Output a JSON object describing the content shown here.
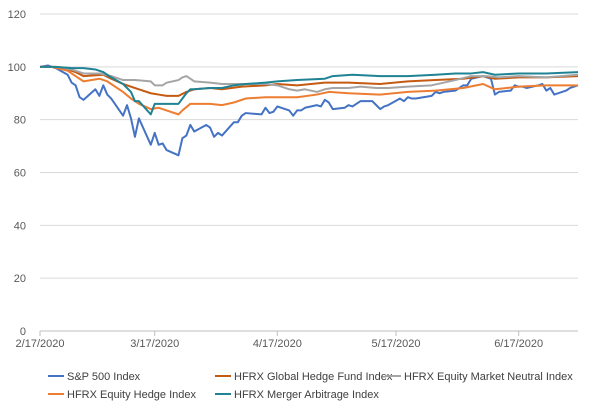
{
  "chart_data": {
    "type": "line",
    "title": "",
    "xlabel": "",
    "ylabel": "",
    "ylim": [
      0,
      120
    ],
    "yticks": [
      0,
      20,
      40,
      60,
      80,
      100,
      120
    ],
    "xlim": [
      "2020-02-17",
      "2020-07-02"
    ],
    "xticks": [
      "2/17/2020",
      "3/17/2020",
      "4/17/2020",
      "5/17/2020",
      "6/17/2020"
    ],
    "grid": {
      "horizontal": true,
      "vertical": false
    },
    "legend": "bottom",
    "series": [
      {
        "name": "S&P 500 Index",
        "color": "#4472c4",
        "points": [
          [
            "2020-02-17",
            100
          ],
          [
            "2020-02-19",
            100.5
          ],
          [
            "2020-02-21",
            99.5
          ],
          [
            "2020-02-24",
            97
          ],
          [
            "2020-02-25",
            94
          ],
          [
            "2020-02-26",
            93
          ],
          [
            "2020-02-27",
            88.5
          ],
          [
            "2020-02-28",
            87.5
          ],
          [
            "2020-03-02",
            91.5
          ],
          [
            "2020-03-03",
            89
          ],
          [
            "2020-03-04",
            93
          ],
          [
            "2020-03-05",
            89.5
          ],
          [
            "2020-03-06",
            88
          ],
          [
            "2020-03-09",
            81.5
          ],
          [
            "2020-03-10",
            85.5
          ],
          [
            "2020-03-11",
            80.5
          ],
          [
            "2020-03-12",
            73.5
          ],
          [
            "2020-03-13",
            80.5
          ],
          [
            "2020-03-16",
            70.5
          ],
          [
            "2020-03-17",
            75
          ],
          [
            "2020-03-18",
            70.5
          ],
          [
            "2020-03-19",
            71
          ],
          [
            "2020-03-20",
            68.5
          ],
          [
            "2020-03-23",
            66.5
          ],
          [
            "2020-03-24",
            73
          ],
          [
            "2020-03-25",
            74
          ],
          [
            "2020-03-26",
            78
          ],
          [
            "2020-03-27",
            75.5
          ],
          [
            "2020-03-30",
            78
          ],
          [
            "2020-03-31",
            77
          ],
          [
            "2020-04-01",
            73.5
          ],
          [
            "2020-04-02",
            75
          ],
          [
            "2020-04-03",
            74
          ],
          [
            "2020-04-06",
            79
          ],
          [
            "2020-04-07",
            79
          ],
          [
            "2020-04-08",
            81.5
          ],
          [
            "2020-04-09",
            82.5
          ],
          [
            "2020-04-13",
            82
          ],
          [
            "2020-04-14",
            84.5
          ],
          [
            "2020-04-15",
            82.5
          ],
          [
            "2020-04-16",
            83
          ],
          [
            "2020-04-17",
            85
          ],
          [
            "2020-04-20",
            83.5
          ],
          [
            "2020-04-21",
            81.5
          ],
          [
            "2020-04-22",
            83.5
          ],
          [
            "2020-04-23",
            83.5
          ],
          [
            "2020-04-24",
            84.5
          ],
          [
            "2020-04-27",
            85.5
          ],
          [
            "2020-04-28",
            85
          ],
          [
            "2020-04-29",
            87.5
          ],
          [
            "2020-04-30",
            86.5
          ],
          [
            "2020-05-01",
            84
          ],
          [
            "2020-05-04",
            84.5
          ],
          [
            "2020-05-05",
            85.5
          ],
          [
            "2020-05-06",
            85
          ],
          [
            "2020-05-07",
            86
          ],
          [
            "2020-05-08",
            87
          ],
          [
            "2020-05-11",
            87
          ],
          [
            "2020-05-12",
            85.5
          ],
          [
            "2020-05-13",
            84
          ],
          [
            "2020-05-14",
            85
          ],
          [
            "2020-05-15",
            85.5
          ],
          [
            "2020-05-18",
            88
          ],
          [
            "2020-05-19",
            87
          ],
          [
            "2020-05-20",
            88.5
          ],
          [
            "2020-05-21",
            88
          ],
          [
            "2020-05-22",
            88
          ],
          [
            "2020-05-26",
            89
          ],
          [
            "2020-05-27",
            90.5
          ],
          [
            "2020-05-28",
            90
          ],
          [
            "2020-05-29",
            90.5
          ],
          [
            "2020-06-01",
            91
          ],
          [
            "2020-06-02",
            92
          ],
          [
            "2020-06-03",
            93
          ],
          [
            "2020-06-04",
            93
          ],
          [
            "2020-06-05",
            95.5
          ],
          [
            "2020-06-08",
            96.5
          ],
          [
            "2020-06-09",
            96
          ],
          [
            "2020-06-10",
            95.5
          ],
          [
            "2020-06-11",
            89.5
          ],
          [
            "2020-06-12",
            90.5
          ],
          [
            "2020-06-15",
            91
          ],
          [
            "2020-06-16",
            93
          ],
          [
            "2020-06-17",
            92.5
          ],
          [
            "2020-06-18",
            92.5
          ],
          [
            "2020-06-19",
            92
          ],
          [
            "2020-06-22",
            93
          ],
          [
            "2020-06-23",
            93.5
          ],
          [
            "2020-06-24",
            91
          ],
          [
            "2020-06-25",
            92
          ],
          [
            "2020-06-26",
            89.5
          ],
          [
            "2020-06-29",
            91
          ],
          [
            "2020-06-30",
            92
          ],
          [
            "2020-07-02",
            93
          ]
        ]
      },
      {
        "name": "HFRX Global Hedge Fund Index",
        "color": "#c55a11",
        "points": [
          [
            "2020-02-17",
            100
          ],
          [
            "2020-02-20",
            100
          ],
          [
            "2020-02-24",
            99
          ],
          [
            "2020-02-26",
            98
          ],
          [
            "2020-02-28",
            96.5
          ],
          [
            "2020-03-04",
            97
          ],
          [
            "2020-03-06",
            95.5
          ],
          [
            "2020-03-09",
            93.5
          ],
          [
            "2020-03-11",
            92.5
          ],
          [
            "2020-03-13",
            91.5
          ],
          [
            "2020-03-16",
            90
          ],
          [
            "2020-03-18",
            89.5
          ],
          [
            "2020-03-20",
            89
          ],
          [
            "2020-03-23",
            89
          ],
          [
            "2020-03-25",
            90.5
          ],
          [
            "2020-03-27",
            91.5
          ],
          [
            "2020-03-31",
            92
          ],
          [
            "2020-04-03",
            91.5
          ],
          [
            "2020-04-08",
            92.5
          ],
          [
            "2020-04-14",
            93
          ],
          [
            "2020-04-17",
            93.5
          ],
          [
            "2020-04-22",
            93
          ],
          [
            "2020-04-29",
            94
          ],
          [
            "2020-05-05",
            94
          ],
          [
            "2020-05-13",
            93.5
          ],
          [
            "2020-05-20",
            94.5
          ],
          [
            "2020-05-27",
            95
          ],
          [
            "2020-06-03",
            95.5
          ],
          [
            "2020-06-08",
            96.5
          ],
          [
            "2020-06-11",
            95.5
          ],
          [
            "2020-06-17",
            96
          ],
          [
            "2020-06-24",
            96
          ],
          [
            "2020-07-02",
            96.5
          ]
        ]
      },
      {
        "name": "HFRX Equity Market Neutral Index",
        "color": "#a5a5a5",
        "points": [
          [
            "2020-02-17",
            100
          ],
          [
            "2020-02-21",
            100
          ],
          [
            "2020-02-25",
            99
          ],
          [
            "2020-02-28",
            97.5
          ],
          [
            "2020-03-03",
            97.5
          ],
          [
            "2020-03-06",
            96.5
          ],
          [
            "2020-03-09",
            95
          ],
          [
            "2020-03-12",
            95
          ],
          [
            "2020-03-16",
            94.5
          ],
          [
            "2020-03-17",
            93
          ],
          [
            "2020-03-19",
            93
          ],
          [
            "2020-03-20",
            94
          ],
          [
            "2020-03-23",
            95
          ],
          [
            "2020-03-24",
            96
          ],
          [
            "2020-03-25",
            96.5
          ],
          [
            "2020-03-26",
            95.5
          ],
          [
            "2020-03-27",
            94.5
          ],
          [
            "2020-03-31",
            94
          ],
          [
            "2020-04-03",
            93.5
          ],
          [
            "2020-04-08",
            93.5
          ],
          [
            "2020-04-14",
            93.5
          ],
          [
            "2020-04-17",
            93
          ],
          [
            "2020-04-20",
            91.5
          ],
          [
            "2020-04-22",
            91
          ],
          [
            "2020-04-24",
            91.5
          ],
          [
            "2020-04-27",
            90.5
          ],
          [
            "2020-04-29",
            91.5
          ],
          [
            "2020-05-01",
            92
          ],
          [
            "2020-05-05",
            92
          ],
          [
            "2020-05-08",
            92.5
          ],
          [
            "2020-05-12",
            92
          ],
          [
            "2020-05-15",
            92
          ],
          [
            "2020-05-20",
            92.5
          ],
          [
            "2020-05-26",
            93
          ],
          [
            "2020-06-01",
            95
          ],
          [
            "2020-06-05",
            96.5
          ],
          [
            "2020-06-09",
            96.5
          ],
          [
            "2020-06-12",
            96
          ],
          [
            "2020-06-17",
            96.5
          ],
          [
            "2020-06-24",
            96
          ],
          [
            "2020-07-02",
            97
          ]
        ]
      },
      {
        "name": "HFRX Equity Hedge Index",
        "color": "#ed7d31",
        "points": [
          [
            "2020-02-17",
            100
          ],
          [
            "2020-02-20",
            100
          ],
          [
            "2020-02-24",
            98.5
          ],
          [
            "2020-02-26",
            96.5
          ],
          [
            "2020-02-28",
            94.5
          ],
          [
            "2020-03-03",
            95.5
          ],
          [
            "2020-03-05",
            94.5
          ],
          [
            "2020-03-09",
            90.5
          ],
          [
            "2020-03-11",
            88
          ],
          [
            "2020-03-13",
            86
          ],
          [
            "2020-03-16",
            84
          ],
          [
            "2020-03-18",
            84.5
          ],
          [
            "2020-03-20",
            83.5
          ],
          [
            "2020-03-23",
            82
          ],
          [
            "2020-03-24",
            83.5
          ],
          [
            "2020-03-26",
            86
          ],
          [
            "2020-03-31",
            86
          ],
          [
            "2020-04-03",
            85.5
          ],
          [
            "2020-04-06",
            86.5
          ],
          [
            "2020-04-09",
            88
          ],
          [
            "2020-04-14",
            88.5
          ],
          [
            "2020-04-17",
            88.5
          ],
          [
            "2020-04-22",
            88.5
          ],
          [
            "2020-04-27",
            89.5
          ],
          [
            "2020-04-30",
            90.5
          ],
          [
            "2020-05-05",
            90
          ],
          [
            "2020-05-13",
            89.5
          ],
          [
            "2020-05-20",
            90.5
          ],
          [
            "2020-05-27",
            91
          ],
          [
            "2020-06-03",
            92
          ],
          [
            "2020-06-08",
            93.5
          ],
          [
            "2020-06-11",
            91.5
          ],
          [
            "2020-06-17",
            92.5
          ],
          [
            "2020-06-24",
            93
          ],
          [
            "2020-07-02",
            93
          ]
        ]
      },
      {
        "name": "HFRX Merger Arbitrage Index",
        "color": "#1f8394",
        "points": [
          [
            "2020-02-17",
            100
          ],
          [
            "2020-02-21",
            100
          ],
          [
            "2020-02-25",
            99.5
          ],
          [
            "2020-02-28",
            99.5
          ],
          [
            "2020-03-02",
            99
          ],
          [
            "2020-03-04",
            98
          ],
          [
            "2020-03-06",
            96
          ],
          [
            "2020-03-09",
            93.5
          ],
          [
            "2020-03-11",
            90.5
          ],
          [
            "2020-03-12",
            87
          ],
          [
            "2020-03-13",
            87
          ],
          [
            "2020-03-16",
            82
          ],
          [
            "2020-03-17",
            86
          ],
          [
            "2020-03-18",
            86
          ],
          [
            "2020-03-20",
            86
          ],
          [
            "2020-03-23",
            86
          ],
          [
            "2020-03-24",
            88
          ],
          [
            "2020-03-25",
            90
          ],
          [
            "2020-03-26",
            91.5
          ],
          [
            "2020-03-27",
            91.5
          ],
          [
            "2020-03-31",
            92
          ],
          [
            "2020-04-03",
            92
          ],
          [
            "2020-04-06",
            93
          ],
          [
            "2020-04-09",
            93.5
          ],
          [
            "2020-04-14",
            94
          ],
          [
            "2020-04-17",
            94.5
          ],
          [
            "2020-04-22",
            95
          ],
          [
            "2020-04-29",
            95.5
          ],
          [
            "2020-05-01",
            96.5
          ],
          [
            "2020-05-06",
            97
          ],
          [
            "2020-05-13",
            96.5
          ],
          [
            "2020-05-20",
            96.5
          ],
          [
            "2020-05-27",
            97
          ],
          [
            "2020-06-01",
            97.5
          ],
          [
            "2020-06-05",
            97.5
          ],
          [
            "2020-06-08",
            98
          ],
          [
            "2020-06-11",
            97
          ],
          [
            "2020-06-17",
            97.5
          ],
          [
            "2020-06-24",
            97.5
          ],
          [
            "2020-07-02",
            98
          ]
        ]
      }
    ]
  }
}
